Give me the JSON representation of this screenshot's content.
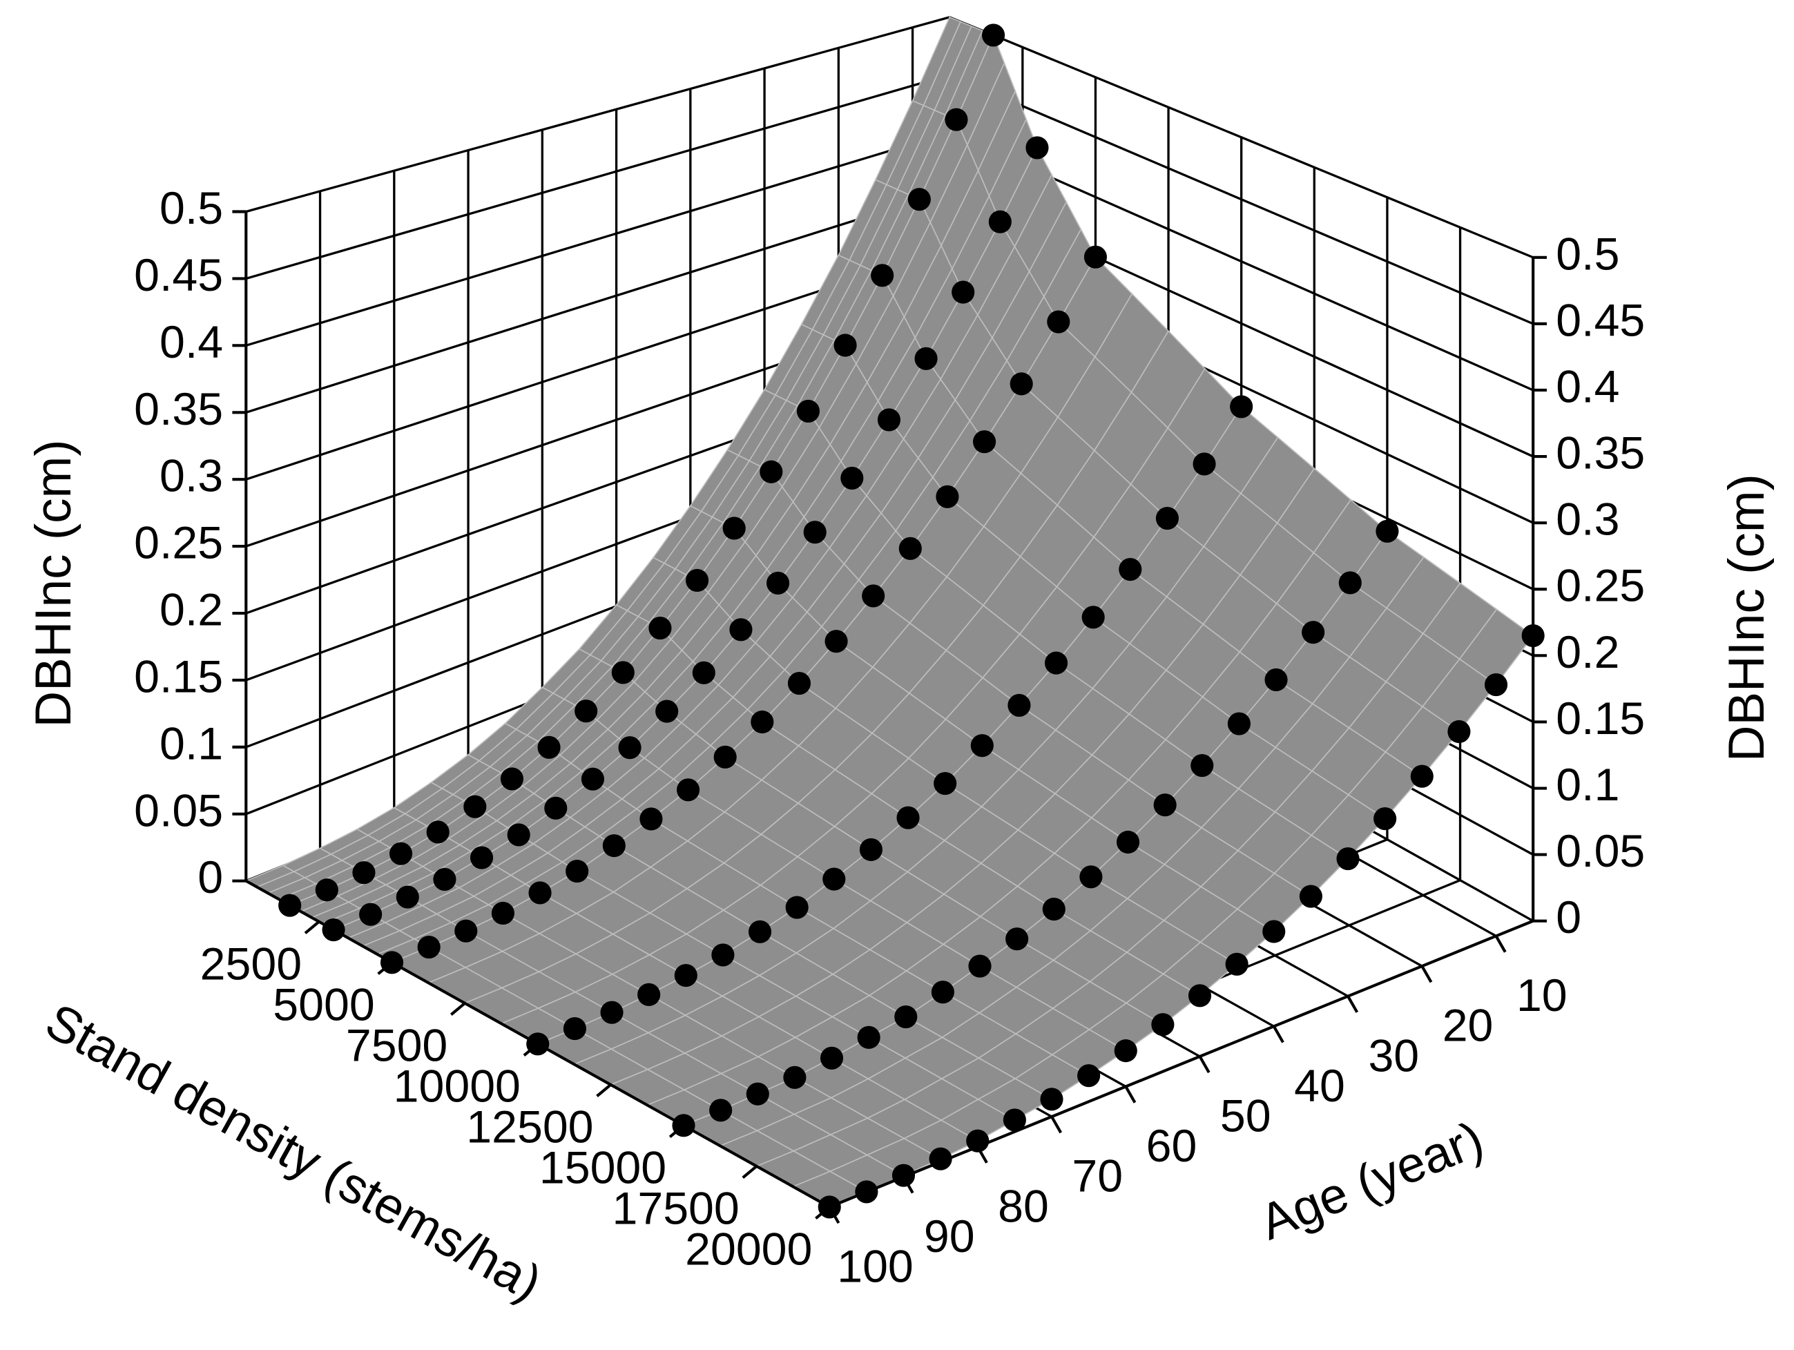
{
  "chart_data": {
    "type": "surface3d",
    "xlabel": "Stand density (stems/ha)",
    "ylabel": "Age (year)",
    "zlabel": "DBHInc (cm)",
    "xlim": [
      0,
      20000
    ],
    "xticks": [
      2500,
      5000,
      7500,
      10000,
      12500,
      15000,
      17500,
      20000
    ],
    "ylim": [
      5,
      100
    ],
    "yticks": [
      10,
      20,
      30,
      40,
      50,
      60,
      70,
      80,
      90,
      100
    ],
    "zlim": [
      0,
      0.5
    ],
    "zticks": [
      0,
      0.05,
      0.1,
      0.15,
      0.2,
      0.25,
      0.3,
      0.35,
      0.4,
      0.45,
      0.5
    ],
    "grid": true,
    "surface_color": "#8e8e8e",
    "y": [
      5,
      10,
      15,
      20,
      25,
      30,
      35,
      40,
      45,
      50,
      55,
      60,
      65,
      70,
      75,
      80,
      85,
      90,
      95,
      100
    ],
    "series": [
      {
        "x": 1500,
        "color": "#000000",
        "values": [
          0.5,
          0.437,
          0.379,
          0.325,
          0.277,
          0.233,
          0.194,
          0.159,
          0.128,
          0.101,
          0.077,
          0.058,
          0.041,
          0.028,
          0.018,
          0.01,
          0.005,
          0.002,
          0.0003,
          0
        ]
      },
      {
        "x": 3000,
        "color": "#000000",
        "values": [
          0.42,
          0.367,
          0.318,
          0.273,
          0.233,
          0.196,
          0.163,
          0.133,
          0.107,
          0.084,
          0.065,
          0.048,
          0.035,
          0.024,
          0.015,
          0.009,
          0.004,
          0.002,
          0.0003,
          0
        ]
      },
      {
        "x": 5000,
        "color": "#000000",
        "values": [
          0.35,
          0.306,
          0.265,
          0.228,
          0.194,
          0.163,
          0.136,
          0.111,
          0.089,
          0.07,
          0.054,
          0.04,
          0.029,
          0.02,
          0.012,
          0.007,
          0.003,
          0.001,
          0.0002,
          0
        ]
      },
      {
        "x": 10000,
        "color": "#000000",
        "values": [
          0.283,
          0.247,
          0.214,
          0.184,
          0.157,
          0.132,
          0.11,
          0.09,
          0.072,
          0.057,
          0.044,
          0.033,
          0.023,
          0.016,
          0.01,
          0.006,
          0.003,
          0.001,
          0.0002,
          0
        ]
      },
      {
        "x": 15000,
        "color": "#000000",
        "values": [
          0.24,
          0.21,
          0.182,
          0.156,
          0.133,
          0.112,
          0.093,
          0.076,
          0.061,
          0.048,
          0.037,
          0.028,
          0.02,
          0.013,
          0.009,
          0.005,
          0.002,
          0.001,
          0.0001,
          0
        ]
      },
      {
        "x": 20000,
        "color": "#000000",
        "values": [
          0.215,
          0.188,
          0.163,
          0.14,
          0.119,
          0.1,
          0.083,
          0.068,
          0.055,
          0.043,
          0.033,
          0.025,
          0.018,
          0.012,
          0.008,
          0.004,
          0.002,
          0.001,
          0.0001,
          0
        ]
      }
    ]
  }
}
